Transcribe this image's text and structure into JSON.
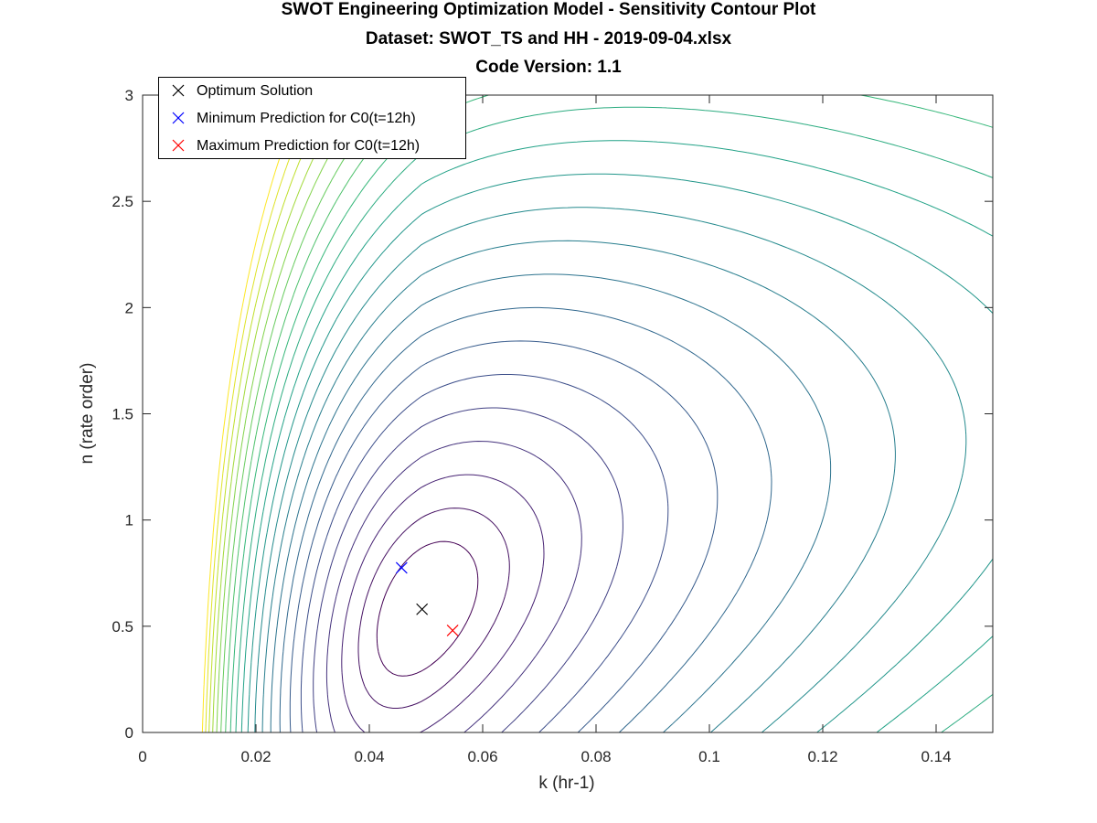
{
  "chart_data": {
    "type": "contour",
    "title": [
      "SWOT Engineering Optimization Model - Sensitivity Contour Plot",
      "Dataset: SWOT_TS and HH - 2019-09-04.xlsx",
      "Code Version: 1.1"
    ],
    "xlabel": "k (hr-1)",
    "ylabel": "n (rate order)",
    "xlim": [
      0,
      0.15
    ],
    "ylim": [
      0,
      3
    ],
    "xticks": [
      "0",
      "0.02",
      "0.04",
      "0.06",
      "0.08",
      "0.1",
      "0.12",
      "0.14"
    ],
    "xtick_values": [
      0,
      0.02,
      0.04,
      0.06,
      0.08,
      0.1,
      0.12,
      0.14
    ],
    "yticks": [
      "0",
      "0.5",
      "1",
      "1.5",
      "2",
      "2.5",
      "3"
    ],
    "ytick_values": [
      0,
      0.5,
      1,
      1.5,
      2,
      2.5,
      3
    ],
    "grid": false,
    "colormap": "viridis",
    "contour_levels": 22,
    "legend_position": "top-left",
    "legend": [
      {
        "label": "Optimum Solution",
        "color": "#000000",
        "marker": "x"
      },
      {
        "label": "Minimum Prediction for C0(t=12h)",
        "color": "#0000ff",
        "marker": "x"
      },
      {
        "label": "Maximum Prediction for C0(t=12h)",
        "color": "#ff0000",
        "marker": "x"
      }
    ],
    "points": [
      {
        "name": "Optimum Solution",
        "x": 0.0493,
        "y": 0.58,
        "color": "#000000"
      },
      {
        "name": "Minimum Prediction for C0(t=12h)",
        "x": 0.0457,
        "y": 0.775,
        "color": "#0000ff"
      },
      {
        "name": "Maximum Prediction for C0(t=12h)",
        "x": 0.0547,
        "y": 0.48,
        "color": "#ff0000"
      }
    ]
  }
}
